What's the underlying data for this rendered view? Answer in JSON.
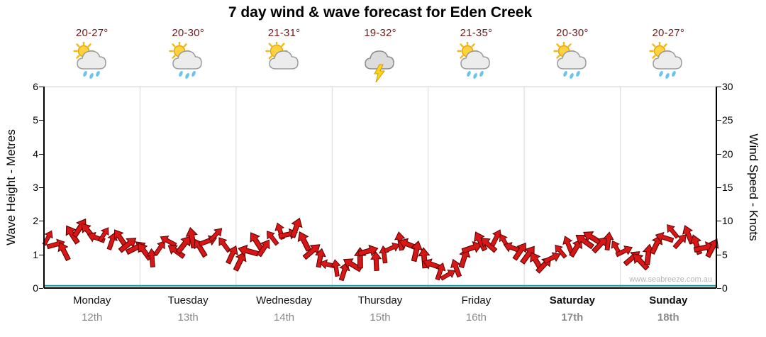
{
  "title": "7 day wind & wave forecast for Eden Creek",
  "watermark": "www.seabreeze.com.au",
  "axes": {
    "left_label": "Wave Height - Metres",
    "right_label": "Wind Speed - Knots",
    "left_ticks": [
      0,
      1,
      2,
      3,
      4,
      5,
      6
    ],
    "right_ticks": [
      0,
      5,
      10,
      15,
      20,
      25,
      30
    ]
  },
  "colors": {
    "arrow_fill": "#d81616",
    "arrow_stroke": "#5c0000",
    "baseline": "#159a9a",
    "temp_text": "#6b1a1a",
    "day_text": "#111111",
    "date_text": "#8a8a8a",
    "grid": "#d8d8d8",
    "axis": "#000000",
    "plot_top_border": "#cccccc"
  },
  "days": [
    {
      "name": "Monday",
      "date": "12th",
      "temp": "20-27°",
      "icon": "sun-cloud-showers",
      "weekend": false
    },
    {
      "name": "Tuesday",
      "date": "13th",
      "temp": "20-30°",
      "icon": "sun-cloud-showers",
      "weekend": false
    },
    {
      "name": "Wednesday",
      "date": "14th",
      "temp": "21-31°",
      "icon": "sun-cloud",
      "weekend": false
    },
    {
      "name": "Thursday",
      "date": "15th",
      "temp": "19-32°",
      "icon": "thunderstorm",
      "weekend": false
    },
    {
      "name": "Friday",
      "date": "16th",
      "temp": "21-35°",
      "icon": "sun-cloud-showers",
      "weekend": false
    },
    {
      "name": "Saturday",
      "date": "17th",
      "temp": "20-30°",
      "icon": "sun-cloud-showers",
      "weekend": true
    },
    {
      "name": "Sunday",
      "date": "18th",
      "temp": "20-27°",
      "icon": "sun-cloud-showers",
      "weekend": true
    }
  ],
  "chart_data": {
    "type": "area",
    "title": "7 day wind & wave forecast for Eden Creek",
    "ylabel_left": "Wave Height - Metres",
    "ylabel_right": "Wind Speed - Knots",
    "ylim_left": [
      0,
      6
    ],
    "ylim_right": [
      0,
      30
    ],
    "grid": "vertical-day-boundaries",
    "legend": "none",
    "x_categories": [
      "Monday 12th",
      "Tuesday 13th",
      "Wednesday 14th",
      "Thursday 15th",
      "Friday 16th",
      "Saturday 17th",
      "Sunday 18th"
    ],
    "points_per_day": 12,
    "series": [
      {
        "name": "Wave Height (m) / Wind arrows",
        "style": "wind-arrows",
        "color": "#d81616",
        "values": [
          1.5,
          1.3,
          1.1,
          1.6,
          1.8,
          1.7,
          1.5,
          1.6,
          1.4,
          1.5,
          1.3,
          1.2,
          1.1,
          0.9,
          1.2,
          1.4,
          1.1,
          1.3,
          1.5,
          1.2,
          1.4,
          1.6,
          1.3,
          1.0,
          0.8,
          1.1,
          1.4,
          1.2,
          1.5,
          1.7,
          1.6,
          1.8,
          1.4,
          1.1,
          0.9,
          0.7,
          0.6,
          0.5,
          0.7,
          0.9,
          1.1,
          0.8,
          1.0,
          1.2,
          1.4,
          1.3,
          1.1,
          0.9,
          0.7,
          0.5,
          0.4,
          0.6,
          0.9,
          1.2,
          1.4,
          1.3,
          1.5,
          1.4,
          1.2,
          1.1,
          1.0,
          0.8,
          0.7,
          0.9,
          1.1,
          1.3,
          1.2,
          1.4,
          1.5,
          1.3,
          1.4,
          1.2,
          1.1,
          0.9,
          0.8,
          1.0,
          1.3,
          1.5,
          1.7,
          1.4,
          1.6,
          1.3,
          1.2,
          1.2
        ]
      },
      {
        "name": "Baseline",
        "style": "line",
        "color": "#159a9a",
        "constant_value": 0.07
      }
    ]
  }
}
